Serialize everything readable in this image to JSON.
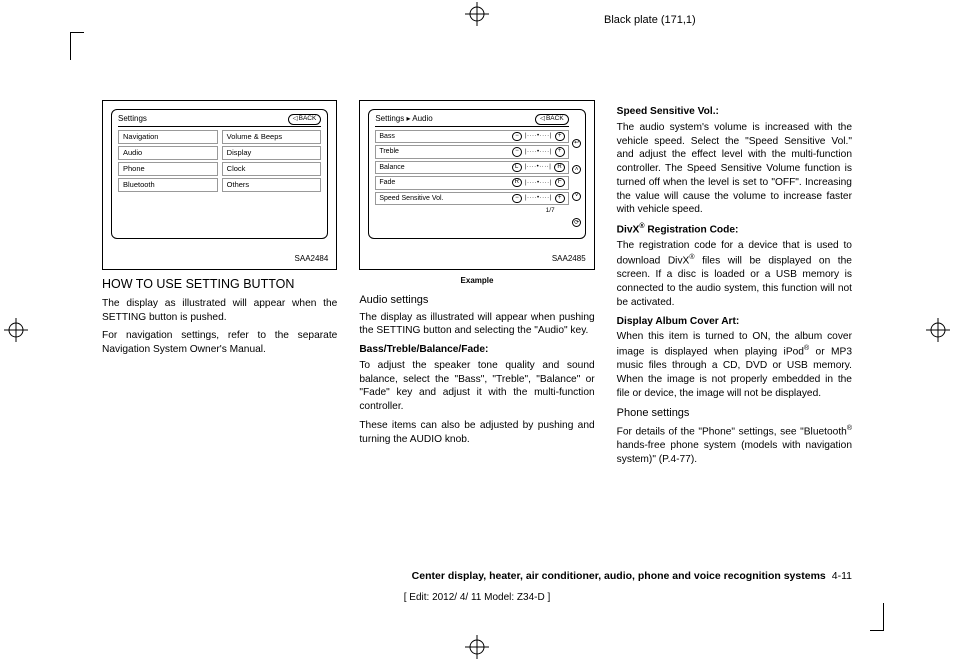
{
  "plate_label": "Black plate (171,1)",
  "col1": {
    "img_code": "SAA2484",
    "screen_title": "Settings",
    "back_label": "BACK",
    "left_items": [
      "Navigation",
      "Audio",
      "Phone",
      "Bluetooth"
    ],
    "right_items": [
      "Volume & Beeps",
      "Display",
      "Clock",
      "Others"
    ],
    "heading": "HOW TO USE SETTING BUTTON",
    "p1": "The display as illustrated will appear when the SETTING button is pushed.",
    "p2": "For navigation settings, refer to the separate Navigation System Owner's Manual."
  },
  "col2": {
    "img_code": "SAA2485",
    "example": "Example",
    "screen_title": "Settings ▸ Audio",
    "back_label": "BACK",
    "rows": [
      {
        "label": "Bass",
        "l": "−",
        "r": "+"
      },
      {
        "label": "Treble",
        "l": "−",
        "r": "+"
      },
      {
        "label": "Balance",
        "l": "L",
        "r": "R"
      },
      {
        "label": "Fade",
        "l": "R",
        "r": "F"
      },
      {
        "label": "Speed Sensitive Vol.",
        "l": "−",
        "r": "+"
      }
    ],
    "page_ind": "1/7",
    "heading": "Audio settings",
    "p1": "The display as illustrated will appear when pushing the SETTING button and selecting the \"Audio\" key.",
    "h_btbf": "Bass/Treble/Balance/Fade:",
    "p2": "To adjust the speaker tone quality and sound balance, select the \"Bass\", \"Treble\", \"Balance\" or \"Fade\" key and adjust it with the multi-function controller.",
    "p3": "These items can also be adjusted by pushing and turning the AUDIO knob."
  },
  "col3": {
    "h1": "Speed Sensitive Vol.:",
    "p1": "The audio system's volume is increased with the vehicle speed. Select the \"Speed Sensitive Vol.\" and adjust the effect level with the multi-function controller. The Speed Sensitive Volume function is turned off when the level is set to \"OFF\". Increasing the value will cause the volume to increase faster with vehicle speed.",
    "h2_pre": "DivX",
    "h2_post": " Registration Code:",
    "p2_pre": "The registration code for a device that is used to download DivX",
    "p2_post": " files will be displayed on the screen. If a disc is loaded or a USB memory is connected to the audio system, this function will not be activated.",
    "h3": "Display Album Cover Art:",
    "p3_pre": "When this item is turned to ON, the album cover image is displayed when playing iPod",
    "p3_post": " or MP3 music files through a CD, DVD or USB memory. When the image is not properly embedded in the file or device, the image will not be displayed.",
    "h4": "Phone settings",
    "p4_pre": "For details of the \"Phone\" settings, see \"Bluetooth",
    "p4_post": " hands-free phone system (models with navigation system)\" (P.4-77)."
  },
  "footer": {
    "section": "Center display, heater, air conditioner, audio, phone and voice recognition systems",
    "page": "4-11",
    "edit": "[ Edit: 2012/ 4/ 11  Model: Z34-D ]"
  }
}
